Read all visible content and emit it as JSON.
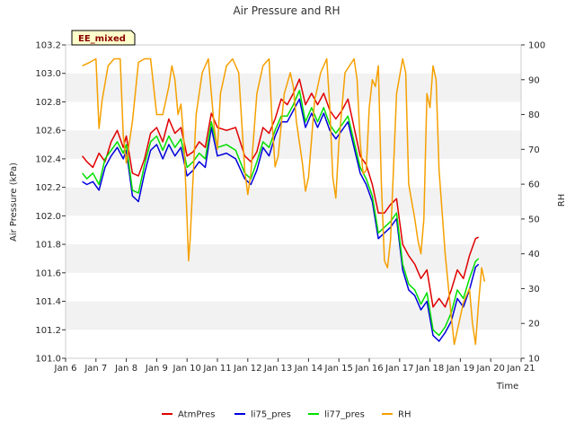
{
  "chart_data": {
    "type": "line",
    "title": "Air Pressure and RH",
    "badge": "EE_mixed",
    "xlabel": "Time",
    "ylabel_left": "Air Pressure (kPa)",
    "ylabel_right": "RH",
    "x_ticks": [
      "Jan 6",
      "Jan 7",
      "Jan 8",
      "Jan 9",
      "Jan 10",
      "Jan 11",
      "Jan 12",
      "Jan 13",
      "Jan 14",
      "Jan 15",
      "Jan 16",
      "Jan 17",
      "Jan 18",
      "Jan 19",
      "Jan 20",
      "Jan 21"
    ],
    "xlim": [
      6,
      21
    ],
    "ylim_left": [
      101.0,
      103.2
    ],
    "ylim_right": [
      10,
      100
    ],
    "y_ticks_left": [
      "101.0",
      "101.2",
      "101.4",
      "101.6",
      "101.8",
      "102.0",
      "102.2",
      "102.4",
      "102.6",
      "102.8",
      "103.0",
      "103.2"
    ],
    "y_ticks_right": [
      "10",
      "20",
      "30",
      "40",
      "50",
      "60",
      "70",
      "80",
      "90",
      "100"
    ],
    "grid": "horizontal bands",
    "legend_position": "bottom",
    "series": [
      {
        "name": "AtmPres",
        "color": "#e00000",
        "axis": "left",
        "points": [
          [
            6.55,
            102.42
          ],
          [
            6.7,
            102.38
          ],
          [
            6.9,
            102.34
          ],
          [
            7.1,
            102.44
          ],
          [
            7.3,
            102.38
          ],
          [
            7.5,
            102.52
          ],
          [
            7.7,
            102.6
          ],
          [
            7.9,
            102.48
          ],
          [
            8.0,
            102.56
          ],
          [
            8.2,
            102.3
          ],
          [
            8.4,
            102.28
          ],
          [
            8.6,
            102.4
          ],
          [
            8.8,
            102.58
          ],
          [
            9.0,
            102.62
          ],
          [
            9.2,
            102.52
          ],
          [
            9.4,
            102.68
          ],
          [
            9.6,
            102.58
          ],
          [
            9.8,
            102.62
          ],
          [
            10.0,
            102.42
          ],
          [
            10.2,
            102.45
          ],
          [
            10.4,
            102.52
          ],
          [
            10.6,
            102.48
          ],
          [
            10.8,
            102.72
          ],
          [
            11.0,
            102.62
          ],
          [
            11.3,
            102.6
          ],
          [
            11.6,
            102.62
          ],
          [
            11.9,
            102.42
          ],
          [
            12.1,
            102.38
          ],
          [
            12.3,
            102.45
          ],
          [
            12.5,
            102.62
          ],
          [
            12.7,
            102.58
          ],
          [
            12.9,
            102.68
          ],
          [
            13.1,
            102.82
          ],
          [
            13.3,
            102.78
          ],
          [
            13.5,
            102.86
          ],
          [
            13.7,
            102.96
          ],
          [
            13.9,
            102.78
          ],
          [
            14.1,
            102.86
          ],
          [
            14.3,
            102.78
          ],
          [
            14.5,
            102.86
          ],
          [
            14.7,
            102.74
          ],
          [
            14.9,
            102.68
          ],
          [
            15.1,
            102.74
          ],
          [
            15.3,
            102.82
          ],
          [
            15.5,
            102.62
          ],
          [
            15.7,
            102.42
          ],
          [
            15.9,
            102.36
          ],
          [
            16.1,
            102.22
          ],
          [
            16.3,
            102.02
          ],
          [
            16.5,
            102.02
          ],
          [
            16.7,
            102.08
          ],
          [
            16.9,
            102.12
          ],
          [
            17.1,
            101.8
          ],
          [
            17.3,
            101.72
          ],
          [
            17.5,
            101.66
          ],
          [
            17.7,
            101.56
          ],
          [
            17.9,
            101.62
          ],
          [
            18.1,
            101.36
          ],
          [
            18.3,
            101.42
          ],
          [
            18.5,
            101.36
          ],
          [
            18.7,
            101.48
          ],
          [
            18.9,
            101.62
          ],
          [
            19.1,
            101.56
          ],
          [
            19.3,
            101.72
          ],
          [
            19.5,
            101.84
          ],
          [
            19.6,
            101.85
          ]
        ]
      },
      {
        "name": "li75_pres",
        "color": "#0000dd",
        "axis": "left",
        "points": [
          [
            6.55,
            102.24
          ],
          [
            6.7,
            102.22
          ],
          [
            6.9,
            102.24
          ],
          [
            7.1,
            102.18
          ],
          [
            7.3,
            102.34
          ],
          [
            7.5,
            102.42
          ],
          [
            7.7,
            102.48
          ],
          [
            7.9,
            102.4
          ],
          [
            8.0,
            102.46
          ],
          [
            8.2,
            102.14
          ],
          [
            8.4,
            102.1
          ],
          [
            8.6,
            102.3
          ],
          [
            8.8,
            102.46
          ],
          [
            9.0,
            102.5
          ],
          [
            9.2,
            102.4
          ],
          [
            9.4,
            102.5
          ],
          [
            9.6,
            102.42
          ],
          [
            9.8,
            102.48
          ],
          [
            10.0,
            102.28
          ],
          [
            10.2,
            102.32
          ],
          [
            10.4,
            102.38
          ],
          [
            10.6,
            102.34
          ],
          [
            10.8,
            102.62
          ],
          [
            11.0,
            102.42
          ],
          [
            11.3,
            102.44
          ],
          [
            11.6,
            102.4
          ],
          [
            11.9,
            102.26
          ],
          [
            12.1,
            102.22
          ],
          [
            12.3,
            102.32
          ],
          [
            12.5,
            102.48
          ],
          [
            12.7,
            102.42
          ],
          [
            12.9,
            102.56
          ],
          [
            13.1,
            102.66
          ],
          [
            13.3,
            102.66
          ],
          [
            13.5,
            102.74
          ],
          [
            13.7,
            102.82
          ],
          [
            13.9,
            102.62
          ],
          [
            14.1,
            102.72
          ],
          [
            14.3,
            102.62
          ],
          [
            14.5,
            102.72
          ],
          [
            14.7,
            102.6
          ],
          [
            14.9,
            102.54
          ],
          [
            15.1,
            102.6
          ],
          [
            15.3,
            102.66
          ],
          [
            15.5,
            102.48
          ],
          [
            15.7,
            102.3
          ],
          [
            15.9,
            102.22
          ],
          [
            16.1,
            102.1
          ],
          [
            16.3,
            101.84
          ],
          [
            16.5,
            101.88
          ],
          [
            16.7,
            101.92
          ],
          [
            16.9,
            101.98
          ],
          [
            17.1,
            101.62
          ],
          [
            17.3,
            101.48
          ],
          [
            17.5,
            101.44
          ],
          [
            17.7,
            101.34
          ],
          [
            17.9,
            101.4
          ],
          [
            18.1,
            101.16
          ],
          [
            18.3,
            101.12
          ],
          [
            18.5,
            101.18
          ],
          [
            18.7,
            101.26
          ],
          [
            18.9,
            101.42
          ],
          [
            19.1,
            101.36
          ],
          [
            19.3,
            101.48
          ],
          [
            19.5,
            101.64
          ],
          [
            19.6,
            101.66
          ]
        ]
      },
      {
        "name": "li77_pres",
        "color": "#00e000",
        "axis": "left",
        "points": [
          [
            6.55,
            102.3
          ],
          [
            6.7,
            102.26
          ],
          [
            6.9,
            102.3
          ],
          [
            7.1,
            102.22
          ],
          [
            7.3,
            102.4
          ],
          [
            7.5,
            102.46
          ],
          [
            7.7,
            102.52
          ],
          [
            7.9,
            102.44
          ],
          [
            8.0,
            102.5
          ],
          [
            8.2,
            102.18
          ],
          [
            8.4,
            102.16
          ],
          [
            8.6,
            102.36
          ],
          [
            8.8,
            102.52
          ],
          [
            9.0,
            102.56
          ],
          [
            9.2,
            102.46
          ],
          [
            9.4,
            102.56
          ],
          [
            9.6,
            102.48
          ],
          [
            9.8,
            102.54
          ],
          [
            10.0,
            102.34
          ],
          [
            10.2,
            102.38
          ],
          [
            10.4,
            102.44
          ],
          [
            10.6,
            102.4
          ],
          [
            10.8,
            102.66
          ],
          [
            11.0,
            102.48
          ],
          [
            11.3,
            102.5
          ],
          [
            11.6,
            102.46
          ],
          [
            11.9,
            102.3
          ],
          [
            12.1,
            102.26
          ],
          [
            12.3,
            102.38
          ],
          [
            12.5,
            102.52
          ],
          [
            12.7,
            102.48
          ],
          [
            12.9,
            102.6
          ],
          [
            13.1,
            102.7
          ],
          [
            13.3,
            102.7
          ],
          [
            13.5,
            102.78
          ],
          [
            13.7,
            102.88
          ],
          [
            13.9,
            102.66
          ],
          [
            14.1,
            102.76
          ],
          [
            14.3,
            102.66
          ],
          [
            14.5,
            102.76
          ],
          [
            14.7,
            102.64
          ],
          [
            14.9,
            102.58
          ],
          [
            15.1,
            102.64
          ],
          [
            15.3,
            102.7
          ],
          [
            15.5,
            102.52
          ],
          [
            15.7,
            102.34
          ],
          [
            15.9,
            102.26
          ],
          [
            16.1,
            102.14
          ],
          [
            16.3,
            101.88
          ],
          [
            16.5,
            101.92
          ],
          [
            16.7,
            101.96
          ],
          [
            16.9,
            102.02
          ],
          [
            17.1,
            101.66
          ],
          [
            17.3,
            101.52
          ],
          [
            17.5,
            101.48
          ],
          [
            17.7,
            101.38
          ],
          [
            17.9,
            101.46
          ],
          [
            18.1,
            101.2
          ],
          [
            18.3,
            101.16
          ],
          [
            18.5,
            101.22
          ],
          [
            18.7,
            101.32
          ],
          [
            18.9,
            101.48
          ],
          [
            19.1,
            101.42
          ],
          [
            19.3,
            101.56
          ],
          [
            19.5,
            101.68
          ],
          [
            19.6,
            101.7
          ]
        ]
      },
      {
        "name": "RH",
        "color": "#f5a000",
        "axis": "right",
        "points": [
          [
            6.55,
            94
          ],
          [
            6.8,
            95
          ],
          [
            7.0,
            96
          ],
          [
            7.1,
            76
          ],
          [
            7.2,
            84
          ],
          [
            7.4,
            94
          ],
          [
            7.6,
            96
          ],
          [
            7.8,
            96
          ],
          [
            7.9,
            74
          ],
          [
            8.0,
            66
          ],
          [
            8.2,
            78
          ],
          [
            8.4,
            95
          ],
          [
            8.6,
            96
          ],
          [
            8.8,
            96
          ],
          [
            8.9,
            88
          ],
          [
            9.0,
            80
          ],
          [
            9.2,
            80
          ],
          [
            9.4,
            88
          ],
          [
            9.5,
            94
          ],
          [
            9.6,
            90
          ],
          [
            9.7,
            80
          ],
          [
            9.8,
            83
          ],
          [
            9.9,
            72
          ],
          [
            10.0,
            50
          ],
          [
            10.05,
            38
          ],
          [
            10.1,
            44
          ],
          [
            10.3,
            80
          ],
          [
            10.5,
            92
          ],
          [
            10.7,
            96
          ],
          [
            10.9,
            76
          ],
          [
            11.0,
            70
          ],
          [
            11.1,
            86
          ],
          [
            11.3,
            94
          ],
          [
            11.5,
            96
          ],
          [
            11.7,
            92
          ],
          [
            11.8,
            78
          ],
          [
            11.9,
            64
          ],
          [
            12.0,
            57
          ],
          [
            12.1,
            63
          ],
          [
            12.3,
            86
          ],
          [
            12.5,
            94
          ],
          [
            12.7,
            96
          ],
          [
            12.8,
            78
          ],
          [
            12.9,
            65
          ],
          [
            13.0,
            68
          ],
          [
            13.2,
            86
          ],
          [
            13.4,
            92
          ],
          [
            13.5,
            88
          ],
          [
            13.6,
            78
          ],
          [
            13.8,
            66
          ],
          [
            13.9,
            58
          ],
          [
            14.0,
            62
          ],
          [
            14.2,
            84
          ],
          [
            14.4,
            92
          ],
          [
            14.6,
            96
          ],
          [
            14.7,
            82
          ],
          [
            14.8,
            62
          ],
          [
            14.9,
            56
          ],
          [
            15.0,
            72
          ],
          [
            15.2,
            92
          ],
          [
            15.5,
            96
          ],
          [
            15.6,
            90
          ],
          [
            15.7,
            72
          ],
          [
            15.8,
            63
          ],
          [
            15.9,
            64
          ],
          [
            16.0,
            82
          ],
          [
            16.1,
            90
          ],
          [
            16.2,
            88
          ],
          [
            16.3,
            94
          ],
          [
            16.4,
            60
          ],
          [
            16.5,
            38
          ],
          [
            16.6,
            36
          ],
          [
            16.7,
            44
          ],
          [
            16.9,
            86
          ],
          [
            17.1,
            96
          ],
          [
            17.2,
            92
          ],
          [
            17.3,
            60
          ],
          [
            17.5,
            50
          ],
          [
            17.6,
            44
          ],
          [
            17.7,
            40
          ],
          [
            17.8,
            50
          ],
          [
            17.9,
            86
          ],
          [
            18.0,
            82
          ],
          [
            18.1,
            94
          ],
          [
            18.2,
            90
          ],
          [
            18.3,
            64
          ],
          [
            18.5,
            40
          ],
          [
            18.7,
            22
          ],
          [
            18.8,
            14
          ],
          [
            18.9,
            18
          ],
          [
            19.0,
            22
          ],
          [
            19.1,
            26
          ],
          [
            19.3,
            30
          ],
          [
            19.4,
            20
          ],
          [
            19.5,
            14
          ],
          [
            19.6,
            26
          ],
          [
            19.7,
            36
          ],
          [
            19.8,
            32
          ]
        ]
      }
    ]
  }
}
